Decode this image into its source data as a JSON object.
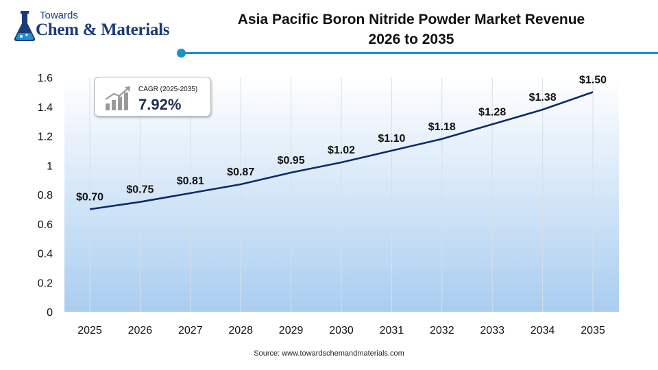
{
  "logo": {
    "top_text": "Towards",
    "main_text": "Chem & Materials",
    "icon": "flask-icon"
  },
  "title": {
    "line1": "Asia Pacific Boron Nitride Powder Market Revenue",
    "line2": "2026 to 2035"
  },
  "cagr": {
    "label": "CAGR (2025-2035)",
    "value": "7.92%",
    "icon": "growth-chart-icon"
  },
  "source": {
    "label": "Source:",
    "url": "www.towardschemandmaterials.com"
  },
  "colors": {
    "line": "#0b2a6b",
    "accent": "#1f8fce",
    "area_top": "#ffffff",
    "area_bottom": "#a9cdf0"
  },
  "chart_data": {
    "type": "line",
    "title": "Asia Pacific Boron Nitride Powder Market Revenue 2026 to 2035",
    "x": [
      "2025",
      "2026",
      "2027",
      "2028",
      "2029",
      "2030",
      "2031",
      "2032",
      "2033",
      "2034",
      "2035"
    ],
    "series": [
      {
        "values": [
          0.7,
          0.75,
          0.81,
          0.87,
          0.95,
          1.02,
          1.1,
          1.18,
          1.28,
          1.38,
          1.5
        ],
        "data_labels": [
          "$0.70",
          "$0.75",
          "$0.81",
          "$0.87",
          "$0.95",
          "$1.02",
          "$1.10",
          "$1.18",
          "$1.28",
          "$1.38",
          "$1.50"
        ]
      }
    ],
    "y_ticks": [
      "0",
      "0.2",
      "0.4",
      "0.6",
      "0.8",
      "1",
      "1.2",
      "1.4",
      "1.6"
    ],
    "ylim": [
      0,
      1.6
    ],
    "grid": "vertical",
    "legend": "none"
  }
}
